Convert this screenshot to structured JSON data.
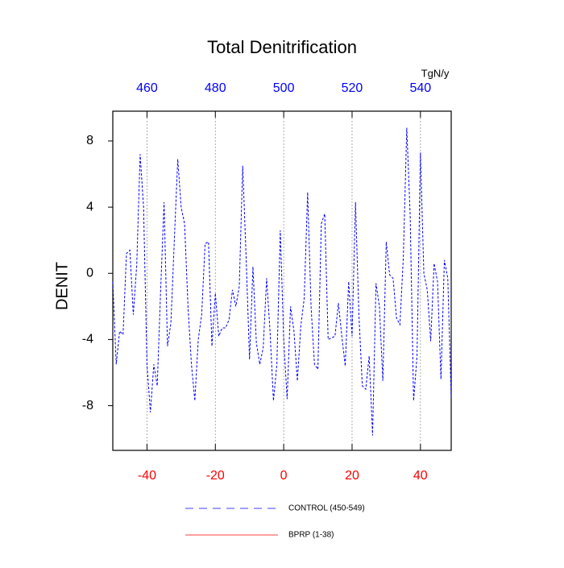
{
  "chart_data": {
    "type": "line",
    "title": "Total Denitrification",
    "ylabel": "DENIT",
    "x2label": "TgN/y",
    "xlim": [
      -50,
      49
    ],
    "xticks": [
      -40,
      -20,
      0,
      20,
      40
    ],
    "x2lim": [
      450,
      549
    ],
    "x2ticks": [
      460,
      480,
      500,
      520,
      540
    ],
    "ylim": [
      -10.7,
      9.8
    ],
    "yticks": [
      -8,
      -4,
      0,
      4,
      8
    ],
    "grid": true,
    "series": [
      {
        "name": "CONTROL (450-549)",
        "color": "#0000ff",
        "dash": true,
        "axis": "x2",
        "x": [
          450,
          451,
          452,
          453,
          454,
          455,
          456,
          457,
          458,
          459,
          460,
          461,
          462,
          463,
          464,
          465,
          466,
          467,
          468,
          469,
          470,
          471,
          472,
          473,
          474,
          475,
          476,
          477,
          478,
          479,
          480,
          481,
          482,
          483,
          484,
          485,
          486,
          487,
          488,
          489,
          490,
          491,
          492,
          493,
          494,
          495,
          496,
          497,
          498,
          499,
          500,
          501,
          502,
          503,
          504,
          505,
          506,
          507,
          508,
          509,
          510,
          511,
          512,
          513,
          514,
          515,
          516,
          517,
          518,
          519,
          520,
          521,
          522,
          523,
          524,
          525,
          526,
          527,
          528,
          529,
          530,
          531,
          532,
          533,
          534,
          535,
          536,
          537,
          538,
          539,
          540,
          541,
          542,
          543,
          544,
          545,
          546,
          547,
          548,
          549
        ],
        "values": [
          -0.5,
          -5.5,
          -3.5,
          -3.7,
          1.2,
          1.4,
          -2.5,
          0.5,
          7.2,
          4,
          -5.5,
          -8.4,
          -5.5,
          -6.8,
          -1,
          4.3,
          -4.4,
          -3,
          2,
          6.9,
          4,
          3,
          -2,
          -5.5,
          -7.7,
          -4,
          -2.5,
          1.8,
          1.9,
          -4.4,
          -1.2,
          -3.8,
          -3.3,
          -3.3,
          -2.8,
          -1,
          -2,
          -0.8,
          6.5,
          1,
          -5.2,
          0.4,
          -4.2,
          -5.5,
          -4.5,
          -0.3,
          -3.5,
          -7.7,
          -5.5,
          2.6,
          -4,
          -7.6,
          -2,
          -3.5,
          -6.5,
          -3.2,
          -1.5,
          4.9,
          -2,
          -5.5,
          -5.8,
          3,
          3.6,
          -4,
          -3.9,
          -3.8,
          -1.8,
          -3.8,
          -5.6,
          -0.5,
          -3.8,
          4.3,
          -2.5,
          -6.8,
          -7,
          -5,
          -9.8,
          -0.6,
          -2,
          -6.5,
          1.9,
          -0.1,
          -0.3,
          -2.7,
          -3.1,
          1,
          8.8,
          3.5,
          -7.7,
          -5,
          7.3,
          0,
          -1,
          -4.1,
          0.6,
          -0.5,
          -6.4,
          0.8,
          -0.3,
          -7.5
        ]
      },
      {
        "name": "BPRP (1-38)",
        "color": "#ff0000",
        "dash": false,
        "x": [],
        "values": []
      }
    ]
  }
}
